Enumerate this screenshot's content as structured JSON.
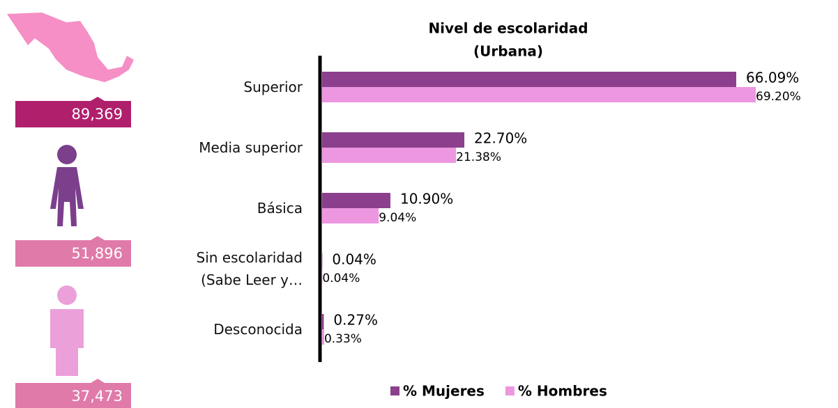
{
  "chart_data": {
    "type": "bar",
    "orientation": "horizontal",
    "title": "Nivel de escolaridad",
    "subtitle": "(Urbana)",
    "categories": [
      "Superior",
      "Media superior",
      "Básica",
      "Sin escolaridad (Sabe Leer y…",
      "Desconocida"
    ],
    "series": [
      {
        "name": "% Mujeres",
        "color": "#8b3f8c",
        "values": [
          66.09,
          22.7,
          10.9,
          0.04,
          0.27
        ],
        "value_labels": [
          "66.09%",
          "22.70%",
          "10.90%",
          "0.04%",
          "0.27%"
        ]
      },
      {
        "name": "% Hombres",
        "color": "#ec97e0",
        "values": [
          69.2,
          21.38,
          9.04,
          0.04,
          0.33
        ],
        "value_labels": [
          "69.20%",
          "21.38%",
          "9.04%",
          "0.04%",
          "0.33%"
        ]
      }
    ],
    "legend": "bottom"
  },
  "stats": [
    {
      "value": "89,369",
      "color": "#b01f6c"
    },
    {
      "value": "51,896",
      "color": "#e07aa8"
    },
    {
      "value": "37,473",
      "color": "#e07aa8"
    }
  ]
}
